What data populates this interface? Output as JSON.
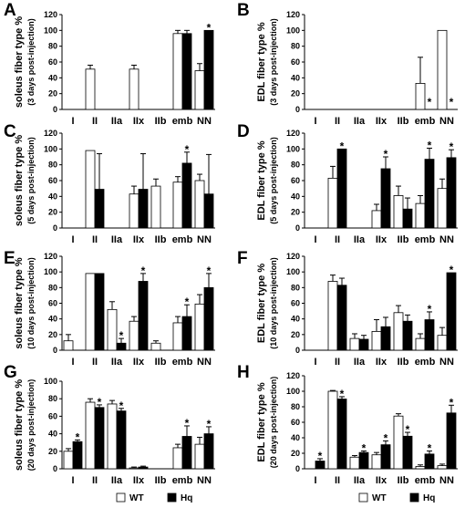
{
  "colors": {
    "wt": "#ffffff",
    "hq": "#000000",
    "stroke": "#000000"
  },
  "legend": [
    {
      "name": "WT",
      "color": "#ffffff"
    },
    {
      "name": "Hq",
      "color": "#000000"
    }
  ],
  "chart_data": [
    {
      "type": "bar",
      "panel": "A",
      "title": "",
      "ylabel": "soleus fiber type %",
      "ylabel2": "(3 days post-injection)",
      "categories": [
        "I",
        "II",
        "IIa",
        "IIx",
        "IIb",
        "emb",
        "NN"
      ],
      "ylim": [
        0,
        120
      ],
      "yticks": [
        0,
        20,
        40,
        60,
        80,
        100,
        120
      ],
      "series": [
        {
          "name": "WT",
          "values": [
            0,
            51,
            0,
            51,
            0,
            96,
            49
          ],
          "errors": [
            0,
            5,
            0,
            5,
            0,
            4,
            9
          ]
        },
        {
          "name": "Hq",
          "values": [
            0,
            0,
            0,
            0,
            0,
            96,
            100
          ],
          "errors": [
            0,
            0,
            0,
            0,
            0,
            4,
            0
          ]
        }
      ],
      "annotations": [
        {
          "category": "NN",
          "series": "Hq",
          "text": "*"
        }
      ]
    },
    {
      "type": "bar",
      "panel": "B",
      "title": "",
      "ylabel": "EDL fiber type %",
      "ylabel2": "(3 days post-injection)",
      "categories": [
        "I",
        "II",
        "IIa",
        "IIx",
        "IIb",
        "emb",
        "NN"
      ],
      "ylim": [
        0,
        120
      ],
      "yticks": [
        0,
        20,
        40,
        60,
        80,
        100,
        120
      ],
      "series": [
        {
          "name": "WT",
          "values": [
            0,
            0,
            0,
            0,
            0,
            33,
            100
          ],
          "errors": [
            0,
            0,
            0,
            0,
            0,
            33,
            0
          ]
        },
        {
          "name": "Hq",
          "values": [
            0,
            0,
            0,
            0,
            0,
            0,
            0
          ],
          "errors": [
            0,
            0,
            0,
            0,
            0,
            0,
            0
          ]
        }
      ],
      "annotations": [
        {
          "category": "emb",
          "series": "Hq",
          "text": "*"
        },
        {
          "category": "NN",
          "series": "Hq",
          "text": "*"
        }
      ]
    },
    {
      "type": "bar",
      "panel": "C",
      "title": "",
      "ylabel": "soleus fiber type %",
      "ylabel2": "(5 days post-injection)",
      "categories": [
        "I",
        "II",
        "IIa",
        "IIx",
        "IIb",
        "emb",
        "NN"
      ],
      "ylim": [
        0,
        120
      ],
      "yticks": [
        0,
        20,
        40,
        60,
        80,
        100,
        120
      ],
      "series": [
        {
          "name": "WT",
          "values": [
            0,
            98,
            0,
            43,
            53,
            58,
            60
          ],
          "errors": [
            0,
            0,
            0,
            10,
            9,
            7,
            8
          ]
        },
        {
          "name": "Hq",
          "values": [
            0,
            49,
            0,
            49,
            0,
            82,
            43
          ],
          "errors": [
            0,
            45,
            0,
            45,
            0,
            14,
            50
          ]
        }
      ],
      "annotations": [
        {
          "category": "emb",
          "series": "Hq",
          "text": "*"
        }
      ]
    },
    {
      "type": "bar",
      "panel": "D",
      "title": "",
      "ylabel": "EDL fiber type %",
      "ylabel2": "(5 days post-injection)",
      "categories": [
        "I",
        "II",
        "IIa",
        "IIx",
        "IIb",
        "emb",
        "NN"
      ],
      "ylim": [
        0,
        120
      ],
      "yticks": [
        0,
        20,
        40,
        60,
        80,
        100,
        120
      ],
      "series": [
        {
          "name": "WT",
          "values": [
            0,
            63,
            0,
            22,
            41,
            31,
            50
          ],
          "errors": [
            0,
            15,
            0,
            8,
            12,
            10,
            12
          ]
        },
        {
          "name": "Hq",
          "values": [
            0,
            100,
            0,
            75,
            24,
            87,
            89
          ],
          "errors": [
            0,
            0,
            0,
            15,
            14,
            14,
            10
          ]
        }
      ],
      "annotations": [
        {
          "category": "II",
          "series": "Hq",
          "text": "*"
        },
        {
          "category": "IIx",
          "series": "Hq",
          "text": "*"
        },
        {
          "category": "emb",
          "series": "Hq",
          "text": "*"
        },
        {
          "category": "NN",
          "series": "Hq",
          "text": "*"
        }
      ]
    },
    {
      "type": "bar",
      "panel": "E",
      "title": "",
      "ylabel": "soleus fiber type %",
      "ylabel2": "(10 days post-injection)",
      "categories": [
        "I",
        "II",
        "IIa",
        "IIx",
        "IIb",
        "emb",
        "NN"
      ],
      "ylim": [
        0,
        120
      ],
      "yticks": [
        0,
        20,
        40,
        60,
        80,
        100,
        120
      ],
      "series": [
        {
          "name": "WT",
          "values": [
            12,
            98,
            52,
            37,
            9,
            35,
            59
          ],
          "errors": [
            8,
            0,
            10,
            6,
            3,
            8,
            12
          ]
        },
        {
          "name": "Hq",
          "values": [
            0,
            98,
            9,
            88,
            0,
            43,
            80
          ],
          "errors": [
            0,
            0,
            6,
            10,
            0,
            15,
            18
          ]
        }
      ],
      "annotations": [
        {
          "category": "IIa",
          "series": "Hq",
          "text": "*"
        },
        {
          "category": "IIx",
          "series": "Hq",
          "text": "*"
        },
        {
          "category": "emb",
          "series": "Hq",
          "text": "*"
        },
        {
          "category": "NN",
          "series": "Hq",
          "text": "*"
        }
      ]
    },
    {
      "type": "bar",
      "panel": "F",
      "title": "",
      "ylabel": "EDL fiber type %",
      "ylabel2": "(10 days post-injection)",
      "categories": [
        "I",
        "II",
        "IIa",
        "IIx",
        "IIb",
        "emb",
        "NN"
      ],
      "ylim": [
        0,
        120
      ],
      "yticks": [
        0,
        20,
        40,
        60,
        80,
        100,
        120
      ],
      "series": [
        {
          "name": "WT",
          "values": [
            0,
            88,
            15,
            24,
            48,
            15,
            19
          ],
          "errors": [
            0,
            8,
            6,
            15,
            9,
            6,
            10
          ]
        },
        {
          "name": "Hq",
          "values": [
            0,
            83,
            14,
            30,
            37,
            39,
            99
          ],
          "errors": [
            0,
            9,
            5,
            12,
            8,
            10,
            0
          ]
        }
      ],
      "annotations": [
        {
          "category": "emb",
          "series": "Hq",
          "text": "*"
        },
        {
          "category": "NN",
          "series": "Hq",
          "text": "*"
        }
      ]
    },
    {
      "type": "bar",
      "panel": "G",
      "title": "",
      "ylabel": "soleus fiber type %",
      "ylabel2": "(20 days post-injection)",
      "categories": [
        "I",
        "II",
        "IIa",
        "IIx",
        "IIb",
        "emb",
        "NN"
      ],
      "ylim": [
        0,
        100
      ],
      "yticks": [
        0,
        20,
        40,
        60,
        80,
        100
      ],
      "series": [
        {
          "name": "WT",
          "values": [
            20,
            76,
            74,
            1,
            0,
            24,
            28
          ],
          "errors": [
            3,
            4,
            4,
            1,
            0,
            4,
            8
          ]
        },
        {
          "name": "Hq",
          "values": [
            31,
            70,
            66,
            2,
            0,
            37,
            40
          ],
          "errors": [
            2,
            3,
            3,
            1,
            0,
            12,
            8
          ]
        }
      ],
      "annotations": [
        {
          "category": "I",
          "series": "Hq",
          "text": "*"
        },
        {
          "category": "II",
          "series": "Hq",
          "text": "*"
        },
        {
          "category": "IIa",
          "series": "Hq",
          "text": "*"
        },
        {
          "category": "emb",
          "series": "Hq",
          "text": "*"
        },
        {
          "category": "NN",
          "series": "Hq",
          "text": "*"
        }
      ]
    },
    {
      "type": "bar",
      "panel": "H",
      "title": "",
      "ylabel": "EDL fiber type %",
      "ylabel2": "(20 days post-injection)",
      "categories": [
        "I",
        "II",
        "IIa",
        "IIx",
        "IIb",
        "emb",
        "NN"
      ],
      "ylim": [
        0,
        120
      ],
      "yticks": [
        0,
        20,
        40,
        60,
        80,
        100,
        120
      ],
      "series": [
        {
          "name": "WT",
          "values": [
            0,
            100,
            15,
            18,
            68,
            3,
            4
          ],
          "errors": [
            0,
            1,
            2,
            3,
            3,
            2,
            2
          ]
        },
        {
          "name": "Hq",
          "values": [
            10,
            90,
            21,
            31,
            42,
            19,
            72
          ],
          "errors": [
            3,
            3,
            2,
            5,
            5,
            4,
            10
          ]
        }
      ],
      "annotations": [
        {
          "category": "I",
          "series": "Hq",
          "text": "*"
        },
        {
          "category": "II",
          "series": "Hq",
          "text": "*"
        },
        {
          "category": "IIa",
          "series": "Hq",
          "text": "*"
        },
        {
          "category": "IIx",
          "series": "Hq",
          "text": "*"
        },
        {
          "category": "IIb",
          "series": "Hq",
          "text": "*"
        },
        {
          "category": "emb",
          "series": "Hq",
          "text": "*"
        },
        {
          "category": "NN",
          "series": "Hq",
          "text": "*"
        }
      ]
    }
  ]
}
